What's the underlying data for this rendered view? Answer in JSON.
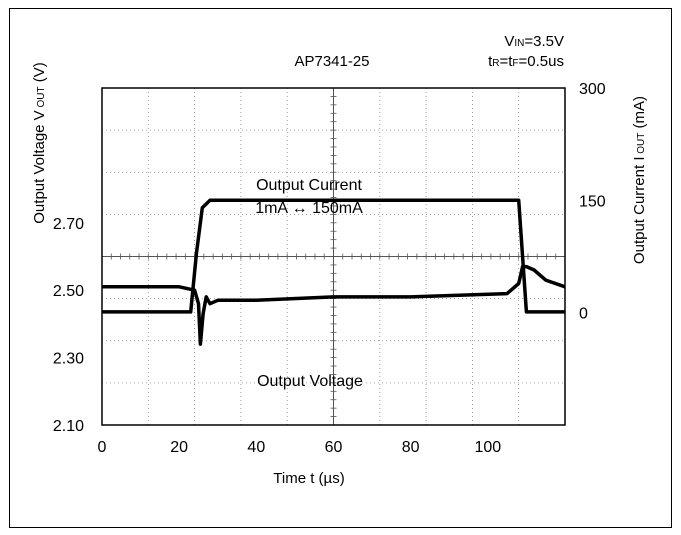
{
  "chart_data": {
    "type": "line",
    "title": "AP7341-25",
    "conditions": {
      "vin": {
        "main": "V",
        "sub": "IN",
        "rest": "=3.5V"
      },
      "trtf": {
        "p1": "t",
        "s1": "R",
        "p2": "=t",
        "s2": "F",
        "p3": "=0.5us"
      }
    },
    "xlabel": "Time t (µs)",
    "ylabel_left": {
      "main": "Output Voltage V",
      "sub": " OUT",
      "unit": " (V)"
    },
    "ylabel_right": {
      "main": "Output Current I",
      "sub": " OUT",
      "unit": " (mA)"
    },
    "x_ticks": [
      "0",
      "20",
      "40",
      "60",
      "80",
      "100"
    ],
    "x_tick_values": [
      0,
      20,
      40,
      60,
      80,
      100
    ],
    "xlim": [
      0,
      120
    ],
    "left_ticks": [
      "2.70",
      "2.50",
      "2.30",
      "2.10"
    ],
    "left_tick_values": [
      2.7,
      2.5,
      2.3,
      2.1
    ],
    "left_ylim": [
      2.1,
      3.1
    ],
    "right_ticks": [
      "300",
      "150",
      "0"
    ],
    "right_tick_values": [
      300,
      150,
      0
    ],
    "right_ylim": [
      -150,
      300
    ],
    "grid": true,
    "annotations": {
      "current_title": "Output Current",
      "current_range": "1mA ↔ 150mA",
      "voltage_title": "Output Voltage"
    },
    "series": [
      {
        "axis": "right",
        "x": [
          0,
          23,
          24.5,
          26,
          28,
          30,
          50,
          70,
          90,
          108,
          110,
          112,
          114,
          120
        ],
        "values": [
          1,
          1,
          80,
          140,
          150,
          150,
          150,
          150,
          150,
          150,
          1,
          1,
          1,
          1
        ]
      },
      {
        "axis": "left",
        "x": [
          0,
          20,
          24,
          25,
          25.5,
          26.2,
          27,
          28,
          30,
          40,
          60,
          80,
          105,
          108,
          109,
          110,
          112,
          115,
          120
        ],
        "values": [
          2.51,
          2.51,
          2.5,
          2.46,
          2.34,
          2.43,
          2.48,
          2.46,
          2.47,
          2.47,
          2.48,
          2.48,
          2.49,
          2.52,
          2.57,
          2.57,
          2.56,
          2.53,
          2.51
        ]
      }
    ]
  }
}
